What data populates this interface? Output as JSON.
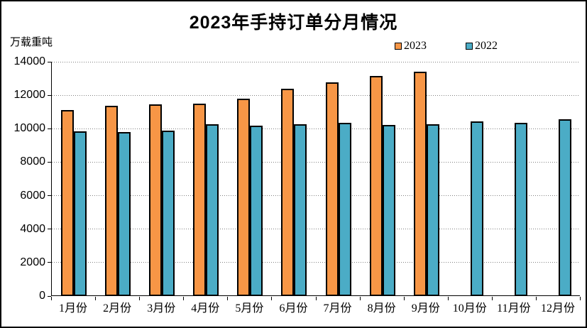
{
  "header": {
    "title": "2023年手持订单分月情况",
    "unit_label": "万载重吨"
  },
  "legend": {
    "items": [
      {
        "label": "2023",
        "color": "#F79646"
      },
      {
        "label": "2022",
        "color": "#4BACC6"
      }
    ]
  },
  "chart_data": {
    "type": "bar",
    "title": "2023年手持订单分月情况",
    "ylabel": "万载重吨",
    "xlabel": "",
    "categories": [
      "1月份",
      "2月份",
      "3月份",
      "4月份",
      "5月份",
      "6月份",
      "7月份",
      "8月份",
      "9月份",
      "10月份",
      "11月份",
      "12月份"
    ],
    "series": [
      {
        "name": "2023",
        "color": "#F79646",
        "values": [
          11109,
          11367,
          11452,
          11510,
          11799,
          12377,
          12790,
          13155,
          13393,
          null,
          null,
          null
        ]
      },
      {
        "name": "2022",
        "color": "#4BACC6",
        "values": [
          9843,
          9798,
          9898,
          10247,
          10188,
          10274,
          10366,
          10209,
          10266,
          10441,
          10356,
          10557
        ]
      }
    ],
    "ylim": [
      0,
      14000
    ],
    "y_ticks": [
      0,
      2000,
      4000,
      6000,
      8000,
      10000,
      12000,
      14000
    ],
    "grid": "horizontal-dotted",
    "legend_position": "top-right",
    "colors": {
      "bar_border": "#000000",
      "gridline": "#808080",
      "axis": "#000000",
      "background": "#FFFFFF"
    }
  }
}
